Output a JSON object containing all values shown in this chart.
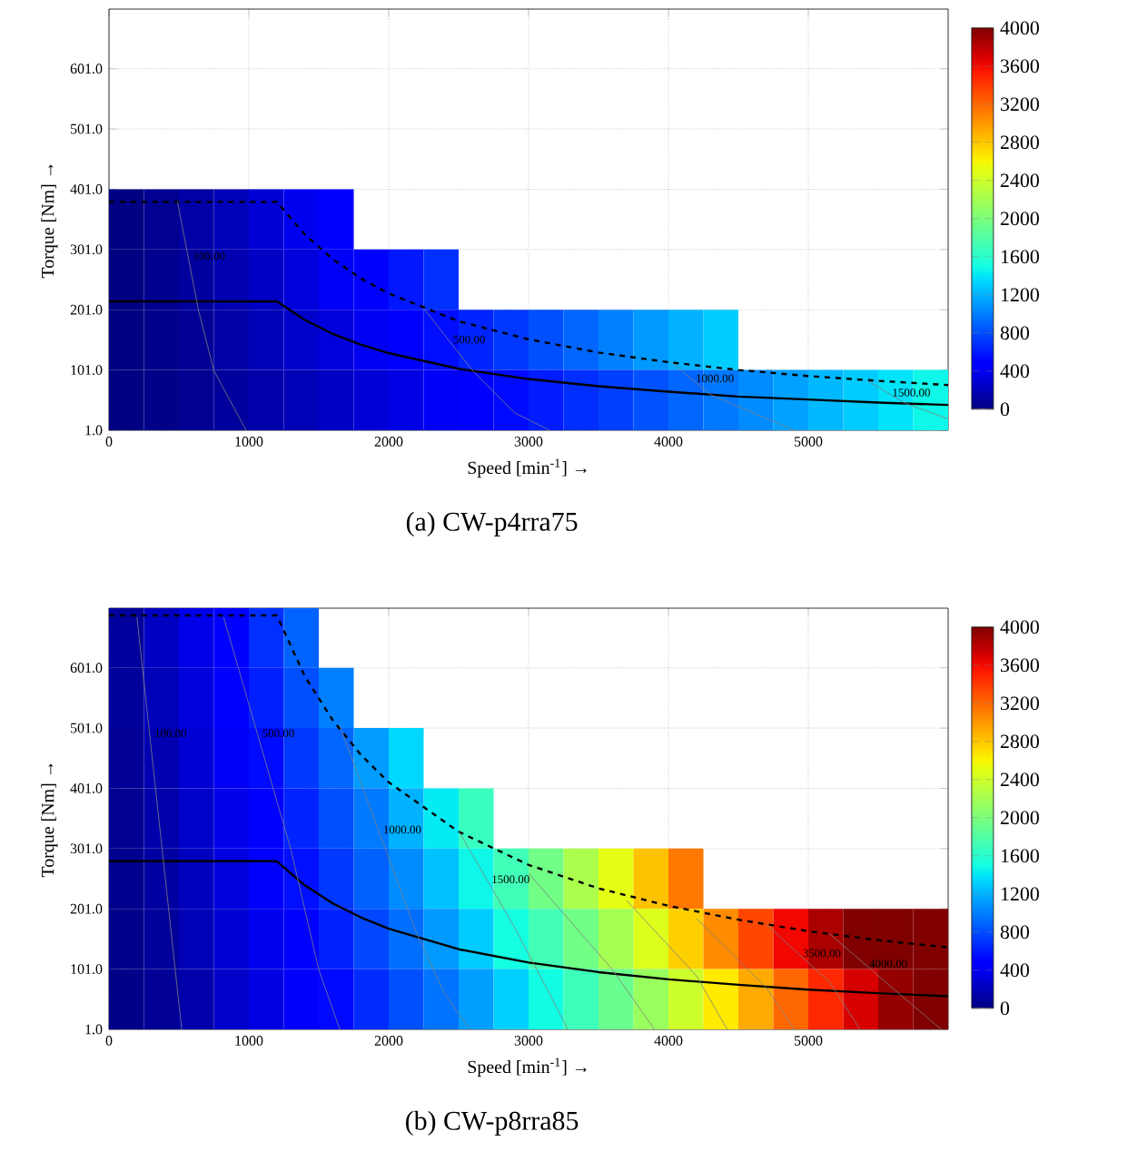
{
  "chart_data": [
    {
      "type": "heatmap",
      "title": "(a) CW-p4rra75",
      "xlabel": "Speed [min$^{-1}$] →",
      "ylabel": "Torque [Nm] →",
      "xlim": [
        0,
        6000
      ],
      "xticks": [
        0,
        1000,
        2000,
        3000,
        4000,
        5000
      ],
      "ylim": [
        1,
        700
      ],
      "yticks": [
        {
          "value": 1,
          "label": "1.0"
        },
        {
          "value": 101,
          "label": "101.0"
        },
        {
          "value": 201,
          "label": "201.0"
        },
        {
          "value": 301,
          "label": "301.0"
        },
        {
          "value": 401,
          "label": "401.0"
        },
        {
          "value": 501,
          "label": "501.0"
        },
        {
          "value": 601,
          "label": "601.0"
        }
      ],
      "grid": true,
      "clim": [
        0,
        4000
      ],
      "cticks": [
        0,
        400,
        800,
        1200,
        1600,
        2000,
        2400,
        2800,
        3200,
        3600,
        4000
      ],
      "x": [
        125,
        375,
        625,
        875,
        1125,
        1375,
        1625,
        1875,
        2125,
        2375,
        2625,
        2875,
        3125,
        3375,
        3625,
        3875,
        4125,
        4375,
        4625,
        4875,
        5125,
        5375,
        5625,
        5875
      ],
      "y": [
        351,
        251,
        151,
        51
      ],
      "cells": [
        [
          10,
          60,
          130,
          200,
          290,
          390,
          490,
          null,
          null,
          null,
          null,
          null,
          null,
          null,
          null,
          null,
          null,
          null,
          null,
          null,
          null,
          null,
          null,
          null
        ],
        [
          10,
          50,
          110,
          170,
          240,
          320,
          410,
          500,
          590,
          690,
          null,
          null,
          null,
          null,
          null,
          null,
          null,
          null,
          null,
          null,
          null,
          null,
          null,
          null
        ],
        [
          10,
          40,
          80,
          140,
          190,
          260,
          320,
          400,
          470,
          550,
          640,
          720,
          810,
          900,
          1000,
          1100,
          1200,
          1300,
          null,
          null,
          null,
          null,
          null,
          null
        ],
        [
          10,
          30,
          60,
          100,
          150,
          190,
          240,
          300,
          350,
          410,
          480,
          540,
          610,
          680,
          750,
          820,
          900,
          970,
          1050,
          1130,
          1220,
          1300,
          1390,
          1470
        ]
      ],
      "series": [
        {
          "type": "line",
          "color": "#000000",
          "line_style": "dashed",
          "x": [
            0,
            1200,
            1400,
            1600,
            1800,
            2000,
            2500,
            3000,
            3500,
            4000,
            4500,
            5000,
            5500,
            6000
          ],
          "values": [
            380,
            380,
            326,
            285,
            253,
            228,
            182,
            152,
            130,
            114,
            101,
            91,
            83,
            76
          ]
        },
        {
          "type": "line",
          "color": "#000000",
          "line_style": "solid",
          "x": [
            0,
            1200,
            1400,
            1600,
            1800,
            2000,
            2500,
            3000,
            3500,
            4000,
            4500,
            5000,
            5500,
            6000
          ],
          "values": [
            215,
            215,
            184,
            161,
            143,
            129,
            103,
            86,
            74,
            65,
            57,
            52,
            47,
            43
          ]
        },
        {
          "type": "line",
          "name": "100.00",
          "color": "#808080",
          "line_style": "solid",
          "x": [
            490,
            640,
            750,
            980
          ],
          "values": [
            380,
            200,
            100,
            1
          ]
        },
        {
          "type": "line",
          "name": "500.00",
          "color": "#808080",
          "line_style": "solid",
          "x": [
            2250,
            2600,
            2900,
            3150
          ],
          "values": [
            203,
            100,
            30,
            1
          ]
        },
        {
          "type": "line",
          "name": "1000.00",
          "color": "#808080",
          "line_style": "solid",
          "x": [
            4020,
            4300,
            4900
          ],
          "values": [
            114,
            60,
            1
          ]
        },
        {
          "type": "line",
          "name": "1500.00",
          "color": "#808080",
          "line_style": "solid",
          "x": [
            5430,
            5700,
            6000
          ],
          "values": [
            82,
            45,
            20
          ]
        }
      ]
    },
    {
      "type": "heatmap",
      "title": "(b) CW-p8rra85",
      "xlabel": "Speed [min$^{-1}$] →",
      "ylabel": "Torque [Nm] →",
      "xlim": [
        0,
        6000
      ],
      "xticks": [
        0,
        1000,
        2000,
        3000,
        4000,
        5000
      ],
      "ylim": [
        1,
        700
      ],
      "yticks": [
        {
          "value": 1,
          "label": "1.0"
        },
        {
          "value": 101,
          "label": "101.0"
        },
        {
          "value": 201,
          "label": "201.0"
        },
        {
          "value": 301,
          "label": "301.0"
        },
        {
          "value": 401,
          "label": "401.0"
        },
        {
          "value": 501,
          "label": "501.0"
        },
        {
          "value": 601,
          "label": "601.0"
        }
      ],
      "grid": true,
      "clim": [
        0,
        4000
      ],
      "cticks": [
        0,
        400,
        800,
        1200,
        1600,
        2000,
        2400,
        2800,
        3200,
        3600,
        4000
      ],
      "x": [
        125,
        375,
        625,
        875,
        1125,
        1375,
        1625,
        1875,
        2125,
        2375,
        2625,
        2875,
        3125,
        3375,
        3625,
        3875,
        4125,
        4375,
        4625,
        4875,
        5125,
        5375,
        5625,
        5875
      ],
      "y": [
        651,
        551,
        451,
        351,
        251,
        151,
        51
      ],
      "cells": [
        [
          100,
          230,
          360,
          490,
          690,
          890,
          null,
          null,
          null,
          null,
          null,
          null,
          null,
          null,
          null,
          null,
          null,
          null,
          null,
          null,
          null,
          null,
          null,
          null
        ],
        [
          90,
          200,
          330,
          450,
          620,
          810,
          1000,
          null,
          null,
          null,
          null,
          null,
          null,
          null,
          null,
          null,
          null,
          null,
          null,
          null,
          null,
          null,
          null,
          null
        ],
        [
          80,
          170,
          290,
          410,
          540,
          720,
          900,
          1110,
          1350,
          null,
          null,
          null,
          null,
          null,
          null,
          null,
          null,
          null,
          null,
          null,
          null,
          null,
          null,
          null
        ],
        [
          60,
          150,
          260,
          370,
          480,
          640,
          810,
          980,
          1200,
          1420,
          1670,
          null,
          null,
          null,
          null,
          null,
          null,
          null,
          null,
          null,
          null,
          null,
          null,
          null
        ],
        [
          50,
          120,
          220,
          330,
          430,
          560,
          720,
          880,
          1050,
          1260,
          1470,
          1710,
          1950,
          2230,
          2510,
          2820,
          3130,
          null,
          null,
          null,
          null,
          null,
          null,
          null
        ],
        [
          40,
          90,
          190,
          290,
          390,
          480,
          630,
          780,
          930,
          1100,
          1300,
          1500,
          1720,
          1950,
          2200,
          2470,
          2760,
          3050,
          3340,
          3610,
          3850,
          4000,
          4000,
          4000
        ],
        [
          30,
          80,
          150,
          250,
          340,
          430,
          530,
          670,
          810,
          950,
          1120,
          1310,
          1490,
          1700,
          1910,
          2140,
          2390,
          2650,
          2920,
          3200,
          3470,
          3700,
          3930,
          4000
        ]
      ],
      "series": [
        {
          "type": "line",
          "color": "#000000",
          "line_style": "dashed",
          "x": [
            0,
            1200,
            1400,
            1600,
            1800,
            2000,
            2500,
            3000,
            3500,
            4000,
            4500,
            5000,
            5500,
            6000
          ],
          "values": [
            688,
            688,
            587,
            514,
            457,
            411,
            329,
            274,
            235,
            206,
            183,
            164,
            149,
            137
          ]
        },
        {
          "type": "line",
          "color": "#000000",
          "line_style": "solid",
          "x": [
            0,
            1200,
            1400,
            1600,
            1800,
            2000,
            2500,
            3000,
            3500,
            4000,
            4500,
            5000,
            5500,
            6000
          ],
          "values": [
            280,
            280,
            240,
            210,
            187,
            168,
            134,
            112,
            96,
            84,
            75,
            67,
            61,
            56
          ]
        },
        {
          "type": "line",
          "name": "100.00",
          "color": "#808080",
          "line_style": "solid",
          "x": [
            200,
            380,
            520
          ],
          "values": [
            685,
            300,
            1
          ]
        },
        {
          "type": "line",
          "name": "500.00",
          "color": "#808080",
          "line_style": "solid",
          "x": [
            820,
            1300,
            1500,
            1650
          ],
          "values": [
            685,
            300,
            100,
            1
          ]
        },
        {
          "type": "line",
          "name": "1000.00",
          "color": "#808080",
          "line_style": "solid",
          "x": [
            1650,
            2200,
            2400,
            2580
          ],
          "values": [
            505,
            160,
            60,
            1
          ]
        },
        {
          "type": "line",
          "name": "1500.00",
          "color": "#808080",
          "line_style": "solid",
          "x": [
            2500,
            2900,
            3150,
            3280
          ],
          "values": [
            330,
            170,
            60,
            1
          ]
        },
        {
          "type": "line",
          "color": "#808080",
          "line_style": "solid",
          "x": [
            3000,
            3600,
            3900
          ],
          "values": [
            260,
            100,
            1
          ]
        },
        {
          "type": "line",
          "color": "#808080",
          "line_style": "solid",
          "x": [
            3700,
            4200,
            4420
          ],
          "values": [
            215,
            90,
            1
          ]
        },
        {
          "type": "line",
          "color": "#808080",
          "line_style": "solid",
          "x": [
            4200,
            4700,
            4900
          ],
          "values": [
            185,
            70,
            1
          ]
        },
        {
          "type": "line",
          "name": "3500.00",
          "color": "#808080",
          "line_style": "solid",
          "x": [
            4700,
            5150,
            5370
          ],
          "values": [
            175,
            80,
            1
          ]
        },
        {
          "type": "line",
          "name": "4000.00",
          "color": "#808080",
          "line_style": "solid",
          "x": [
            5150,
            5650,
            5950
          ],
          "values": [
            160,
            60,
            1
          ]
        }
      ]
    }
  ]
}
